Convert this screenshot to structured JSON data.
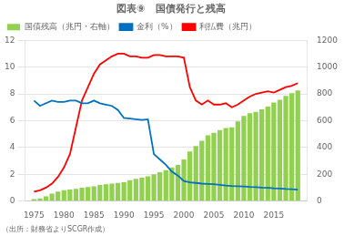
{
  "chart_data": {
    "type": "bar",
    "title": "図表⑨　国債発行と残高",
    "annotations": [
      "（出所：財務省よりSCGR作成）"
    ],
    "x": [
      1975,
      1976,
      1977,
      1978,
      1979,
      1980,
      1981,
      1982,
      1983,
      1984,
      1985,
      1986,
      1987,
      1988,
      1989,
      1990,
      1991,
      1992,
      1993,
      1994,
      1995,
      1996,
      1997,
      1998,
      1999,
      2000,
      2001,
      2002,
      2003,
      2004,
      2005,
      2006,
      2007,
      2008,
      2009,
      2010,
      2011,
      2012,
      2013,
      2014,
      2015,
      2016,
      2017,
      2018,
      2019
    ],
    "series": [
      {
        "name": "国債残高（兆円・右軸）",
        "type": "bar",
        "color": "#92d050",
        "axis": "y2",
        "values": [
          15,
          20,
          35,
          55,
          70,
          80,
          85,
          90,
          100,
          105,
          110,
          120,
          125,
          130,
          135,
          140,
          155,
          165,
          175,
          185,
          200,
          215,
          230,
          250,
          270,
          310,
          370,
          410,
          450,
          490,
          510,
          530,
          545,
          550,
          595,
          635,
          655,
          665,
          685,
          705,
          735,
          755,
          785,
          805,
          825
        ]
      },
      {
        "name": "金利（%）",
        "type": "line",
        "color": "#0070c0",
        "values": [
          7.5,
          7.1,
          7.3,
          7.5,
          7.4,
          7.4,
          7.5,
          7.5,
          7.3,
          7.3,
          7.5,
          7.3,
          7.2,
          7.1,
          6.8,
          6.2,
          6.15,
          6.1,
          6.05,
          6.1,
          3.5,
          3.1,
          2.7,
          2.2,
          1.9,
          1.5,
          1.4,
          1.35,
          1.3,
          1.28,
          1.25,
          1.2,
          1.15,
          1.12,
          1.1,
          1.08,
          1.05,
          1.03,
          1.0,
          0.98,
          0.95,
          0.93,
          0.9,
          0.88,
          0.85
        ]
      },
      {
        "name": "利払費（兆円）",
        "type": "line",
        "color": "#ff0000",
        "values": [
          0.7,
          0.8,
          1.0,
          1.3,
          1.8,
          2.5,
          3.5,
          5.5,
          7.5,
          8.5,
          9.5,
          10.2,
          10.5,
          10.8,
          11.0,
          11.0,
          10.8,
          10.8,
          10.7,
          10.7,
          10.9,
          10.9,
          10.8,
          10.8,
          10.8,
          10.7,
          8.5,
          7.5,
          7.2,
          7.5,
          7.2,
          7.2,
          7.3,
          7.0,
          7.2,
          7.5,
          7.8,
          8.0,
          8.1,
          8.2,
          8.1,
          8.3,
          8.5,
          8.6,
          8.8
        ]
      }
    ],
    "xlim": [
      1973.5,
      2020.5
    ],
    "xticks": [
      1975,
      1980,
      1985,
      1990,
      1995,
      2000,
      2005,
      2010,
      2015
    ],
    "ylim": [
      0,
      12
    ],
    "yticks": [
      0,
      2,
      4,
      6,
      8,
      10,
      12
    ],
    "y2lim": [
      0,
      1200
    ],
    "y2ticks": [
      0,
      200,
      400,
      600,
      800,
      1000,
      1200
    ],
    "grid": "y",
    "legend": "top"
  }
}
